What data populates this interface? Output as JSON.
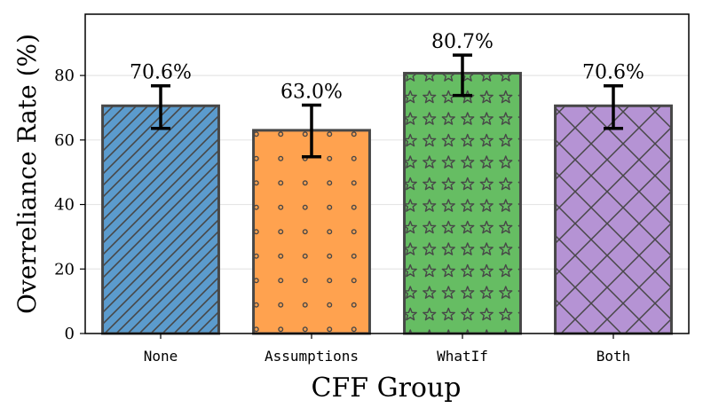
{
  "chart_data": {
    "type": "bar",
    "title": "",
    "xlabel": "CFF Group",
    "ylabel": "Overreliance Rate (%)",
    "categories": [
      "None",
      "Assumptions",
      "WhatIf",
      "Both"
    ],
    "values": [
      70.6,
      63.0,
      80.7,
      70.6
    ],
    "value_labels": [
      "70.6%",
      "63.0%",
      "80.7%",
      "70.6%"
    ],
    "error_low": [
      63.6,
      54.8,
      73.8,
      63.6
    ],
    "error_high": [
      76.8,
      70.8,
      86.3,
      76.8
    ],
    "ylim": [
      0,
      99
    ],
    "yticks": [
      0,
      20,
      40,
      60,
      80
    ],
    "ytick_labels": [
      "0",
      "20",
      "40",
      "60",
      "80"
    ],
    "grid": true,
    "colors": [
      "#5b9bcd",
      "#ffa24f",
      "#66bd63",
      "#b593d4"
    ],
    "edge_color": "#474747",
    "hatches": [
      "diagonal",
      "dots",
      "stars",
      "cross"
    ]
  }
}
